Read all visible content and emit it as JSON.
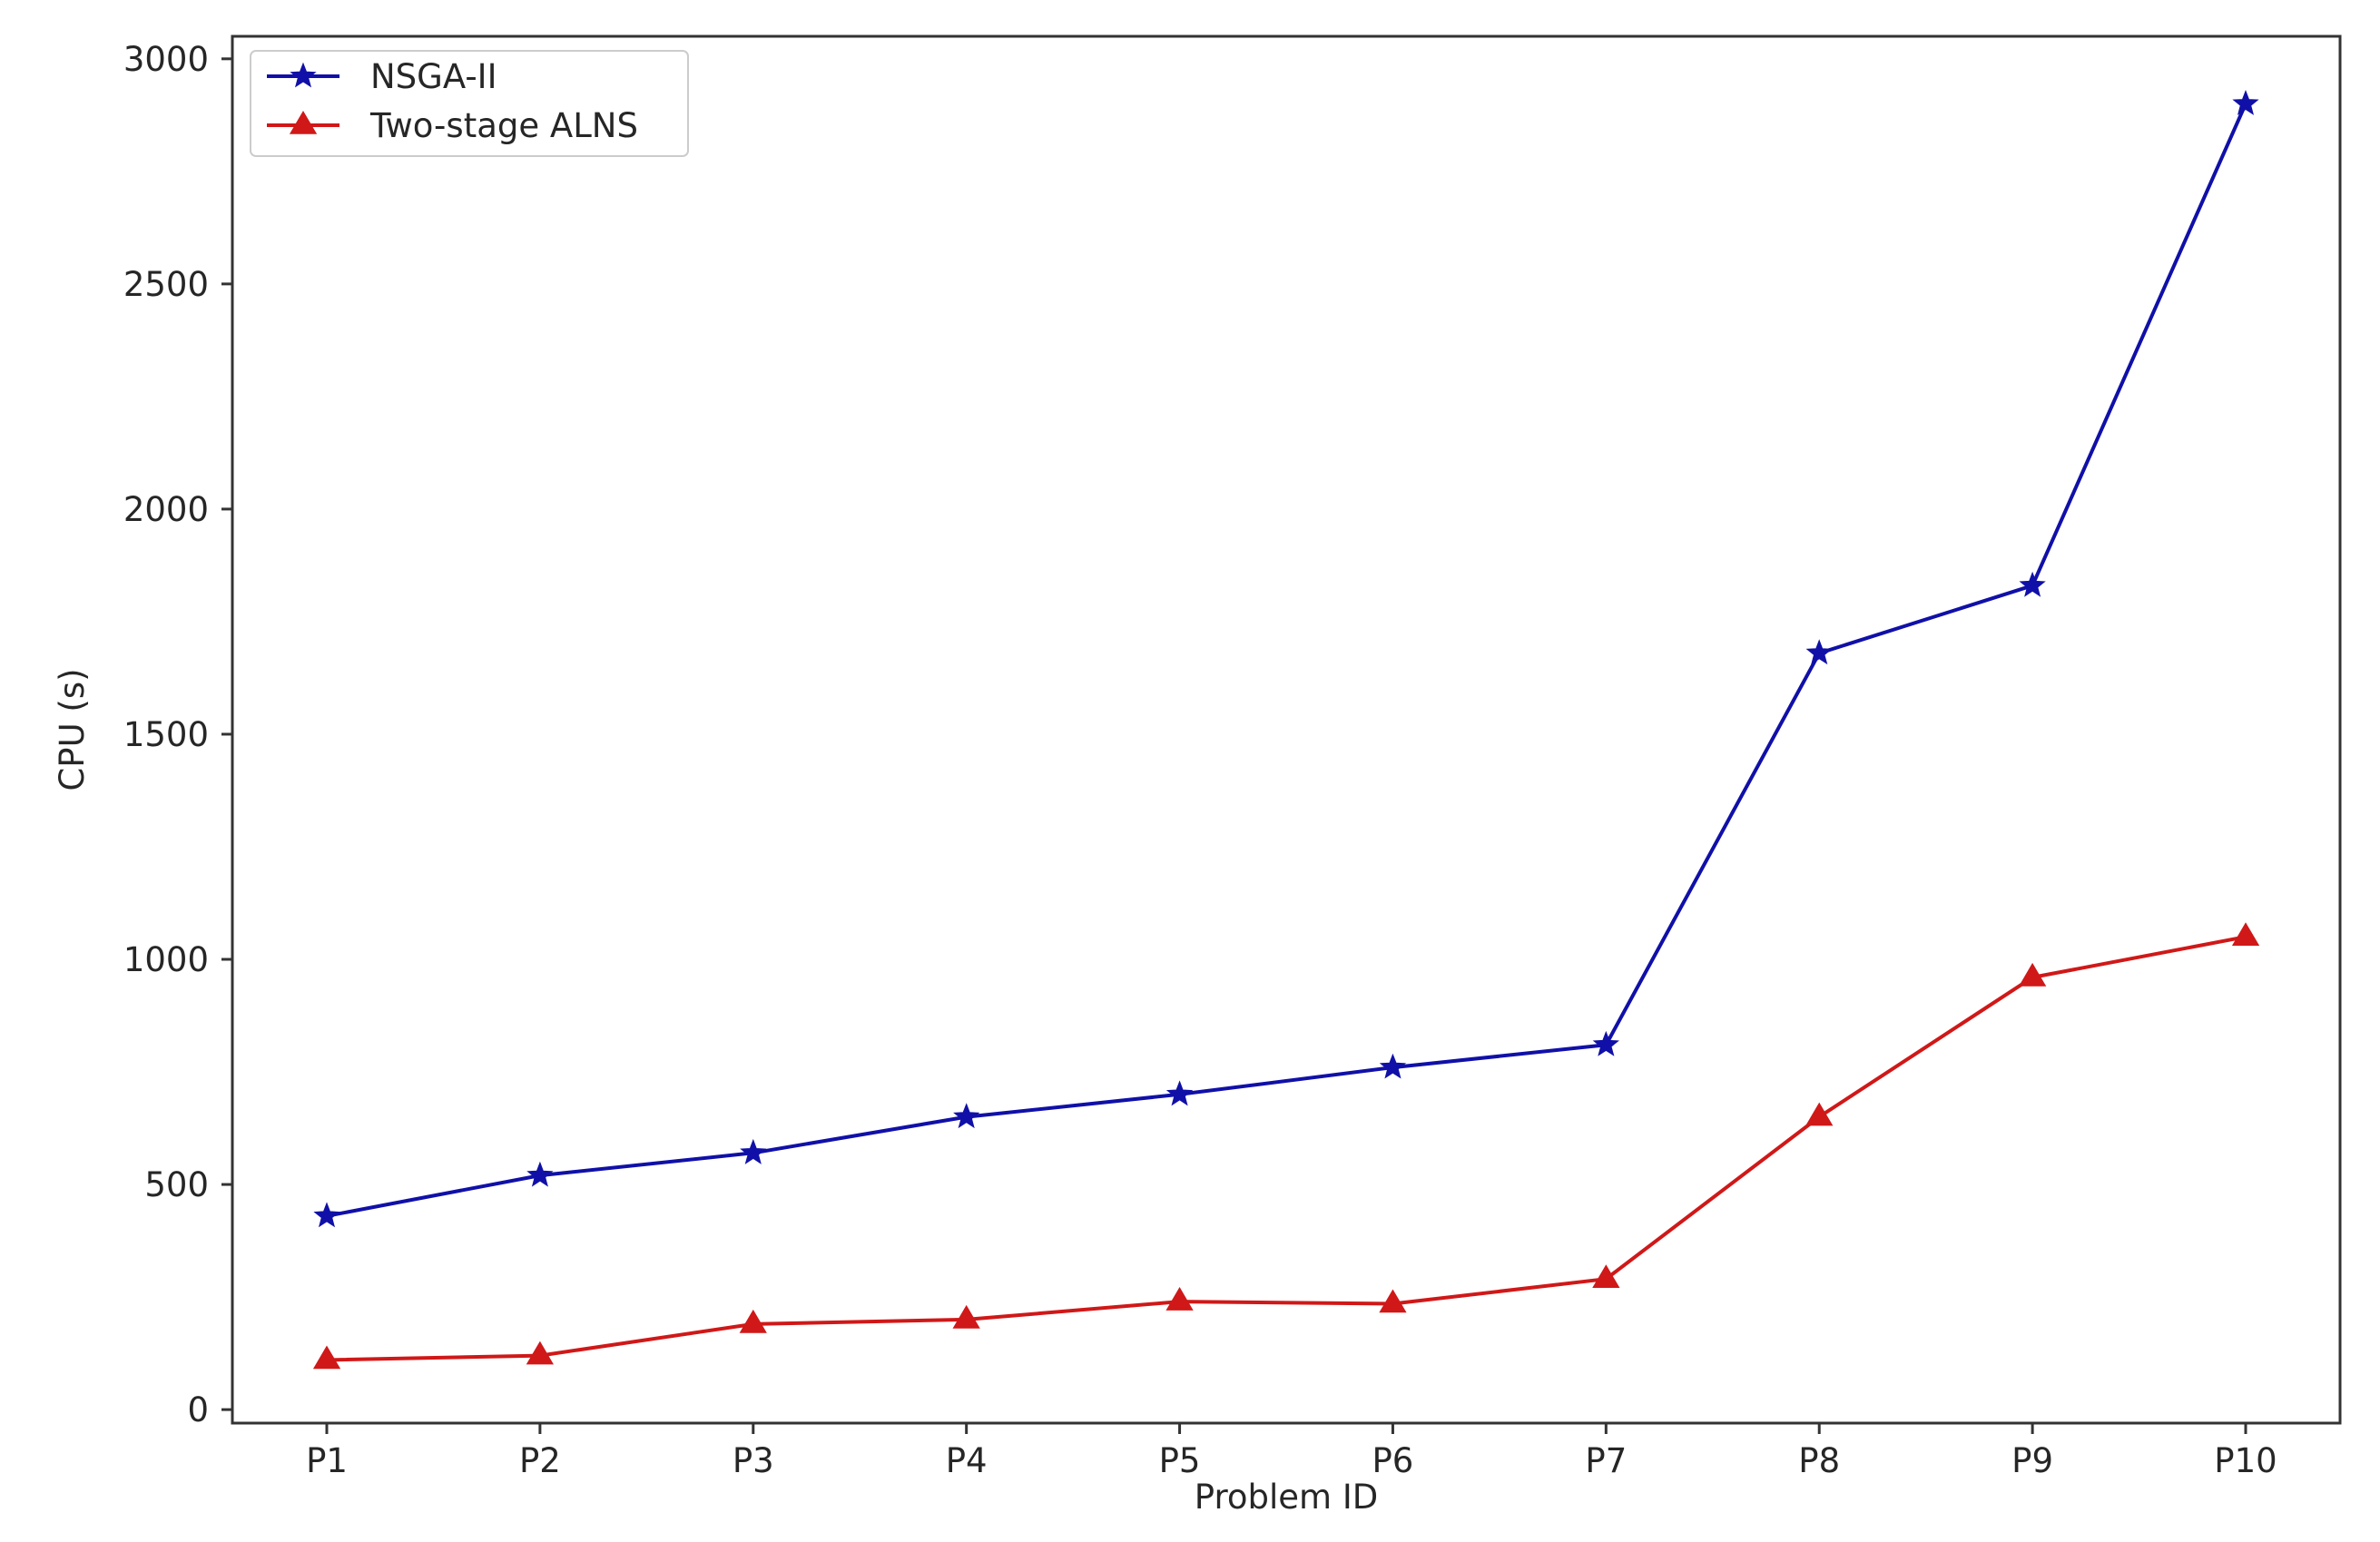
{
  "chart_data": {
    "type": "line",
    "title": "",
    "xlabel": "Problem ID",
    "ylabel": "CPU (s)",
    "categories": [
      "P1",
      "P2",
      "P3",
      "P4",
      "P5",
      "P6",
      "P7",
      "P8",
      "P9",
      "P10"
    ],
    "ylim": [
      -30,
      3050
    ],
    "yticks": [
      0,
      500,
      1000,
      1500,
      2000,
      2500,
      3000
    ],
    "grid": false,
    "legend_placement": "top-left",
    "series": [
      {
        "name": "NSGA-II",
        "color": "#1010a8",
        "marker": "star",
        "values": [
          430,
          520,
          570,
          650,
          700,
          760,
          810,
          1680,
          1830,
          2900
        ]
      },
      {
        "name": "Two-stage ALNS",
        "color": "#d01818",
        "marker": "triangle",
        "values": [
          110,
          120,
          190,
          200,
          240,
          235,
          290,
          650,
          960,
          1050
        ]
      }
    ]
  }
}
